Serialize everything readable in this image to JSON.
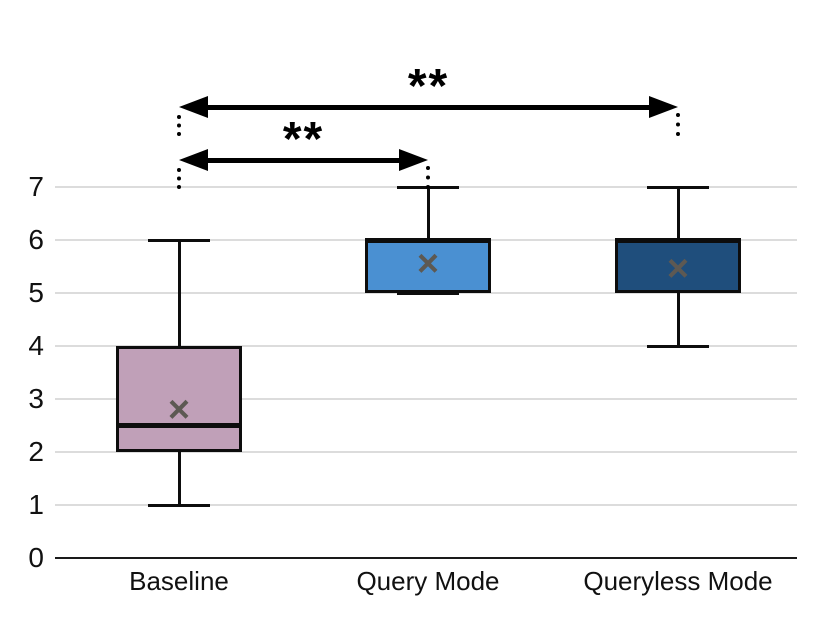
{
  "chart_data": {
    "type": "box",
    "title": "",
    "xlabel": "",
    "ylabel": "",
    "categories": [
      "Baseline",
      "Query Mode",
      "Queryless Mode"
    ],
    "series": [
      {
        "name": "Baseline",
        "min": 1,
        "q1": 2,
        "median": 2.5,
        "q3": 4,
        "max": 6,
        "mean": 2.8,
        "fill_color": "#c0a0b8"
      },
      {
        "name": "Query Mode",
        "min": 5,
        "q1": 5,
        "median": 6,
        "q3": 6,
        "max": 7,
        "mean": 5.55,
        "fill_color": "#4a90d2"
      },
      {
        "name": "Queryless Mode",
        "min": 4,
        "q1": 5,
        "median": 6,
        "q3": 6,
        "max": 7,
        "mean": 5.45,
        "fill_color": "#1f4e7c"
      }
    ],
    "mean_marker": "×",
    "mean_marker_color": "#5d5953",
    "ylim": [
      0,
      7
    ],
    "yticks": [
      0,
      1,
      2,
      3,
      4,
      5,
      6,
      7
    ],
    "grid": true,
    "gridline_color": "#dcdcdc",
    "axis_color": "#1a1a1a",
    "legend": false,
    "annotations": [
      {
        "label": "**",
        "from": "Baseline",
        "to": "Query Mode",
        "from_index": 0,
        "to_index": 1
      },
      {
        "label": "**",
        "from": "Baseline",
        "to": "Queryless Mode",
        "from_index": 0,
        "to_index": 2
      }
    ]
  }
}
